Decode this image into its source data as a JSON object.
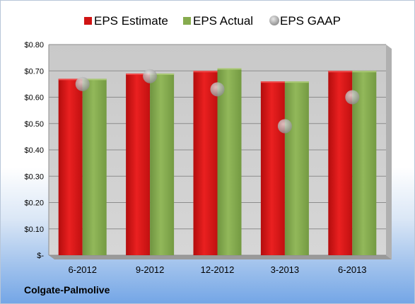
{
  "chart_data": {
    "type": "bar",
    "categories": [
      "6-2012",
      "9-2012",
      "12-2012",
      "3-2013",
      "6-2013"
    ],
    "series": [
      {
        "name": "EPS Estimate",
        "kind": "bar",
        "color": "#cc1111",
        "values": [
          0.67,
          0.69,
          0.7,
          0.66,
          0.7
        ]
      },
      {
        "name": "EPS Actual",
        "kind": "bar",
        "color": "#7ea44a",
        "values": [
          0.67,
          0.69,
          0.71,
          0.66,
          0.7
        ]
      },
      {
        "name": "EPS GAAP",
        "kind": "marker",
        "color": "#b7b7b7",
        "values": [
          0.65,
          0.68,
          0.63,
          0.49,
          0.6
        ]
      }
    ],
    "ylim": [
      0,
      0.8
    ],
    "yticks": [
      0,
      0.1,
      0.2,
      0.3,
      0.4,
      0.5,
      0.6,
      0.7,
      0.8
    ],
    "ytick_labels": [
      "$-",
      "$0.10",
      "$0.20",
      "$0.30",
      "$0.40",
      "$0.50",
      "$0.60",
      "$0.70",
      "$0.80"
    ],
    "legend_position": "top",
    "grid": true
  },
  "footer": {
    "company": "Colgate-Palmolive"
  }
}
